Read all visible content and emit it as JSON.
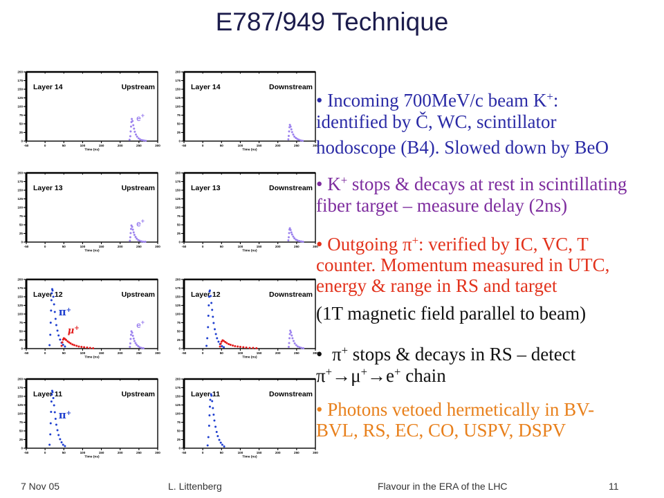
{
  "title": "E787/949 Technique",
  "plot_axes": {
    "xlabel": "Time (ns)",
    "x_ticks": [
      "-50",
      "0",
      "50",
      "100",
      "150",
      "200",
      "250",
      "300"
    ],
    "y_ticks": [
      "0",
      "25",
      "50",
      "75",
      "100",
      "125",
      "150",
      "175",
      "200"
    ],
    "xlim": [
      -50,
      300
    ],
    "ylim": [
      0,
      200
    ]
  },
  "chart_data": [
    {
      "type": "scatter",
      "layer_label": "Layer 14",
      "side_label": "Upstream",
      "series": [
        {
          "color": "#9c82ee",
          "points": [
            [
              225,
              4
            ],
            [
              227,
              14
            ],
            [
              228,
              28
            ],
            [
              229,
              42
            ],
            [
              230,
              55
            ],
            [
              231,
              64
            ],
            [
              233,
              58
            ],
            [
              235,
              46
            ],
            [
              237,
              36
            ],
            [
              239,
              27
            ],
            [
              242,
              19
            ],
            [
              245,
              13
            ],
            [
              249,
              8
            ],
            [
              253,
              5
            ],
            [
              258,
              3
            ],
            [
              263,
              2
            ],
            [
              268,
              1
            ]
          ]
        }
      ],
      "labels": [
        {
          "text": "e",
          "sup": "+",
          "color": "#9c82ee"
        }
      ]
    },
    {
      "type": "scatter",
      "layer_label": "Layer 14",
      "side_label": "Downstream",
      "series": [
        {
          "color": "#9c82ee",
          "points": [
            [
              228,
              5
            ],
            [
              229,
              15
            ],
            [
              230,
              28
            ],
            [
              231,
              40
            ],
            [
              232,
              47
            ],
            [
              234,
              42
            ],
            [
              236,
              34
            ],
            [
              238,
              26
            ],
            [
              241,
              19
            ],
            [
              244,
              13
            ],
            [
              248,
              9
            ],
            [
              252,
              6
            ],
            [
              256,
              4
            ],
            [
              261,
              2
            ],
            [
              266,
              1
            ]
          ]
        }
      ],
      "labels": []
    },
    {
      "type": "scatter",
      "layer_label": "Layer 13",
      "side_label": "Upstream",
      "series": [
        {
          "color": "#9c82ee",
          "points": [
            [
              226,
              4
            ],
            [
              227,
              14
            ],
            [
              228,
              26
            ],
            [
              229,
              38
            ],
            [
              230,
              48
            ],
            [
              232,
              44
            ],
            [
              234,
              36
            ],
            [
              236,
              28
            ],
            [
              238,
              21
            ],
            [
              241,
              15
            ],
            [
              244,
              10
            ],
            [
              248,
              6
            ],
            [
              252,
              4
            ],
            [
              257,
              2
            ],
            [
              262,
              1
            ],
            [
              267,
              1
            ]
          ]
        }
      ],
      "labels": [
        {
          "text": "e",
          "sup": "+",
          "color": "#9c82ee"
        }
      ]
    },
    {
      "type": "scatter",
      "layer_label": "Layer 13",
      "side_label": "Downstream",
      "series": [
        {
          "color": "#9c82ee",
          "points": [
            [
              228,
              5
            ],
            [
              229,
              14
            ],
            [
              230,
              26
            ],
            [
              231,
              36
            ],
            [
              232,
              40
            ],
            [
              234,
              35
            ],
            [
              236,
              28
            ],
            [
              238,
              22
            ],
            [
              241,
              16
            ],
            [
              244,
              11
            ],
            [
              248,
              7
            ],
            [
              252,
              5
            ],
            [
              257,
              3
            ],
            [
              262,
              2
            ],
            [
              267,
              1
            ]
          ]
        }
      ],
      "labels": []
    },
    {
      "type": "scatter",
      "layer_label": "Layer 12",
      "side_label": "Upstream",
      "series": [
        {
          "color": "#1f3fcf",
          "points": [
            [
              12,
              10
            ],
            [
              14,
              40
            ],
            [
              15,
              75
            ],
            [
              16,
              110
            ],
            [
              17,
              140
            ],
            [
              18,
              160
            ],
            [
              19,
              172
            ],
            [
              20,
              168
            ],
            [
              22,
              150
            ],
            [
              24,
              128
            ],
            [
              26,
              106
            ],
            [
              28,
              86
            ],
            [
              30,
              68
            ],
            [
              33,
              52
            ],
            [
              36,
              38
            ],
            [
              40,
              26
            ],
            [
              44,
              17
            ],
            [
              48,
              11
            ],
            [
              53,
              6
            ]
          ]
        },
        {
          "color": "#e31b1b",
          "points": [
            [
              44,
              8
            ],
            [
              46,
              18
            ],
            [
              48,
              26
            ],
            [
              50,
              30
            ],
            [
              53,
              28
            ],
            [
              56,
              25
            ],
            [
              60,
              21
            ],
            [
              64,
              18
            ],
            [
              68,
              15
            ],
            [
              73,
              12
            ],
            [
              78,
              10
            ],
            [
              84,
              8
            ],
            [
              90,
              6
            ],
            [
              97,
              5
            ],
            [
              104,
              4
            ],
            [
              112,
              3
            ],
            [
              120,
              2
            ],
            [
              128,
              1
            ]
          ]
        },
        {
          "color": "#9c82ee",
          "points": [
            [
              226,
              5
            ],
            [
              227,
              15
            ],
            [
              228,
              28
            ],
            [
              229,
              40
            ],
            [
              230,
              50
            ],
            [
              232,
              46
            ],
            [
              234,
              37
            ],
            [
              236,
              29
            ],
            [
              238,
              22
            ],
            [
              241,
              16
            ],
            [
              244,
              11
            ],
            [
              248,
              7
            ],
            [
              252,
              4
            ],
            [
              257,
              2
            ],
            [
              262,
              1
            ]
          ]
        }
      ],
      "labels": [
        {
          "text": "π",
          "sup": "+",
          "color": "#1f3fcf"
        },
        {
          "text": "μ",
          "sup": "+",
          "color": "#e31b1b"
        },
        {
          "text": "e",
          "sup": "+",
          "color": "#9c82ee"
        }
      ]
    },
    {
      "type": "scatter",
      "layer_label": "Layer 12",
      "side_label": "Downstream",
      "series": [
        {
          "color": "#1f3fcf",
          "points": [
            [
              10,
              8
            ],
            [
              12,
              30
            ],
            [
              14,
              62
            ],
            [
              15,
              95
            ],
            [
              16,
              125
            ],
            [
              17,
              150
            ],
            [
              18,
              165
            ],
            [
              19,
              168
            ],
            [
              21,
              152
            ],
            [
              23,
              132
            ],
            [
              25,
              112
            ],
            [
              27,
              92
            ],
            [
              29,
              74
            ],
            [
              32,
              56
            ],
            [
              35,
              42
            ],
            [
              38,
              30
            ],
            [
              42,
              20
            ],
            [
              46,
              13
            ],
            [
              51,
              7
            ],
            [
              56,
              4
            ]
          ]
        },
        {
          "color": "#e31b1b",
          "points": [
            [
              46,
              6
            ],
            [
              48,
              14
            ],
            [
              50,
              20
            ],
            [
              53,
              24
            ],
            [
              56,
              22
            ],
            [
              60,
              19
            ],
            [
              64,
              16
            ],
            [
              69,
              13
            ],
            [
              74,
              11
            ],
            [
              80,
              9
            ],
            [
              86,
              7
            ],
            [
              93,
              6
            ],
            [
              100,
              5
            ],
            [
              108,
              4
            ],
            [
              116,
              3
            ],
            [
              125,
              2
            ],
            [
              134,
              2
            ],
            [
              143,
              1
            ]
          ]
        },
        {
          "color": "#9c82ee",
          "points": [
            [
              229,
              5
            ],
            [
              230,
              16
            ],
            [
              231,
              30
            ],
            [
              232,
              42
            ],
            [
              233,
              52
            ],
            [
              235,
              47
            ],
            [
              237,
              38
            ],
            [
              239,
              30
            ],
            [
              242,
              22
            ],
            [
              245,
              15
            ],
            [
              249,
              10
            ],
            [
              253,
              6
            ],
            [
              258,
              4
            ],
            [
              263,
              2
            ],
            [
              268,
              1
            ]
          ]
        }
      ],
      "labels": []
    },
    {
      "type": "scatter",
      "layer_label": "Layer 11",
      "side_label": "Upstream",
      "series": [
        {
          "color": "#1f3fcf",
          "points": [
            [
              12,
              10
            ],
            [
              14,
              40
            ],
            [
              15,
              72
            ],
            [
              16,
              105
            ],
            [
              17,
              135
            ],
            [
              18,
              155
            ],
            [
              19,
              166
            ],
            [
              20,
              162
            ],
            [
              22,
              145
            ],
            [
              24,
              124
            ],
            [
              26,
              104
            ],
            [
              28,
              85
            ],
            [
              30,
              68
            ],
            [
              33,
              52
            ],
            [
              36,
              38
            ],
            [
              40,
              26
            ],
            [
              44,
              17
            ],
            [
              48,
              10
            ],
            [
              53,
              6
            ]
          ]
        }
      ],
      "labels": [
        {
          "text": "π",
          "sup": "+",
          "color": "#1f3fcf"
        }
      ]
    },
    {
      "type": "scatter",
      "layer_label": "Layer 11",
      "side_label": "Downstream",
      "series": [
        {
          "color": "#1f3fcf",
          "points": [
            [
              13,
              8
            ],
            [
              15,
              32
            ],
            [
              17,
              65
            ],
            [
              18,
              95
            ],
            [
              19,
              120
            ],
            [
              20,
              140
            ],
            [
              22,
              156
            ],
            [
              23,
              152
            ],
            [
              25,
              136
            ],
            [
              27,
              116
            ],
            [
              29,
              97
            ],
            [
              31,
              80
            ],
            [
              34,
              62
            ],
            [
              37,
              47
            ],
            [
              40,
              35
            ],
            [
              44,
              24
            ],
            [
              48,
              16
            ],
            [
              52,
              10
            ],
            [
              57,
              5
            ]
          ]
        }
      ],
      "labels": []
    }
  ],
  "text_items": [
    {
      "color": "#2b2ba6",
      "lines": [
        [
          "• Incoming 700MeV/c beam K",
          "+",
          ":"
        ],
        [
          "identified by Č, WC, scintillator"
        ],
        [
          "hodoscope (B4). Slowed down by BeO"
        ]
      ]
    },
    {
      "color": "#7d2c9e",
      "lines": [
        [
          "• K",
          "+",
          " stops & decays at rest in scintillating"
        ],
        [
          "fiber target – measure delay (2ns)"
        ]
      ]
    },
    {
      "color": "#e2321c",
      "lines": [
        [
          "• Outgoing π",
          "+",
          ": verified by IC, VC, T"
        ],
        [
          "counter. Momentum measured in UTC,"
        ],
        [
          "energy & range in RS and target"
        ]
      ]
    },
    {
      "color": "#111111",
      "lines": [
        [
          "(1T magnetic field parallel to beam)"
        ]
      ]
    },
    {
      "color": "#111111",
      "lines": [
        [
          "•  π",
          "+",
          " stops & decays in RS – detect"
        ],
        [
          "π",
          "+",
          "→μ",
          "+",
          "→e",
          "+",
          " chain"
        ]
      ]
    },
    {
      "color": "#e8801c",
      "lines": [
        [
          "• Photons vetoed hermetically in BV-"
        ],
        [
          "BVL, RS, EC, CO, USPV, DSPV"
        ]
      ]
    }
  ],
  "footer": {
    "date": "7 Nov 05",
    "author": "L. Littenberg",
    "event": "Flavour in the ERA of the LHC",
    "page": "11"
  }
}
